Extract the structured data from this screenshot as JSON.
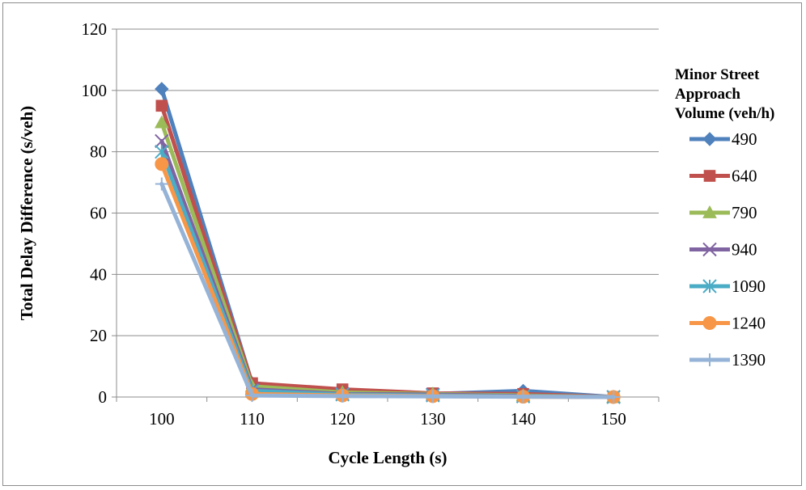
{
  "chart_data": {
    "type": "line",
    "title": "",
    "xlabel": "Cycle Length (s)",
    "ylabel": "Total Delay Difference (s/veh)",
    "categories": [
      "100",
      "110",
      "120",
      "130",
      "140",
      "150"
    ],
    "ylim": [
      0,
      120
    ],
    "yticks": [
      "0",
      "20",
      "40",
      "60",
      "80",
      "100",
      "120"
    ],
    "grid": true,
    "legend_position": "right",
    "legend_title": [
      "Minor Street",
      "Approach",
      "Volume (veh/h)"
    ],
    "series": [
      {
        "name": "490",
        "color": "#4F81BD",
        "marker": "diamond",
        "values": [
          100.5,
          4.5,
          2.0,
          1.0,
          2.0,
          0.0
        ]
      },
      {
        "name": "640",
        "color": "#C0504D",
        "marker": "square",
        "values": [
          95.0,
          4.5,
          2.5,
          1.2,
          1.0,
          0.0
        ]
      },
      {
        "name": "790",
        "color": "#9BBB59",
        "marker": "triangle",
        "values": [
          89.5,
          3.5,
          1.5,
          1.0,
          0.5,
          0.0
        ]
      },
      {
        "name": "940",
        "color": "#8064A2",
        "marker": "x",
        "values": [
          83.5,
          2.5,
          1.0,
          0.8,
          0.3,
          0.0
        ]
      },
      {
        "name": "1090",
        "color": "#4BACC6",
        "marker": "star",
        "values": [
          80.0,
          2.0,
          0.8,
          0.5,
          0.2,
          0.0
        ]
      },
      {
        "name": "1240",
        "color": "#F79646",
        "marker": "circle",
        "values": [
          76.0,
          1.0,
          0.5,
          0.3,
          0.1,
          0.0
        ]
      },
      {
        "name": "1390",
        "color": "#95B3D7",
        "marker": "plus",
        "values": [
          69.5,
          0.5,
          0.3,
          0.2,
          0.1,
          0.0
        ]
      }
    ]
  }
}
